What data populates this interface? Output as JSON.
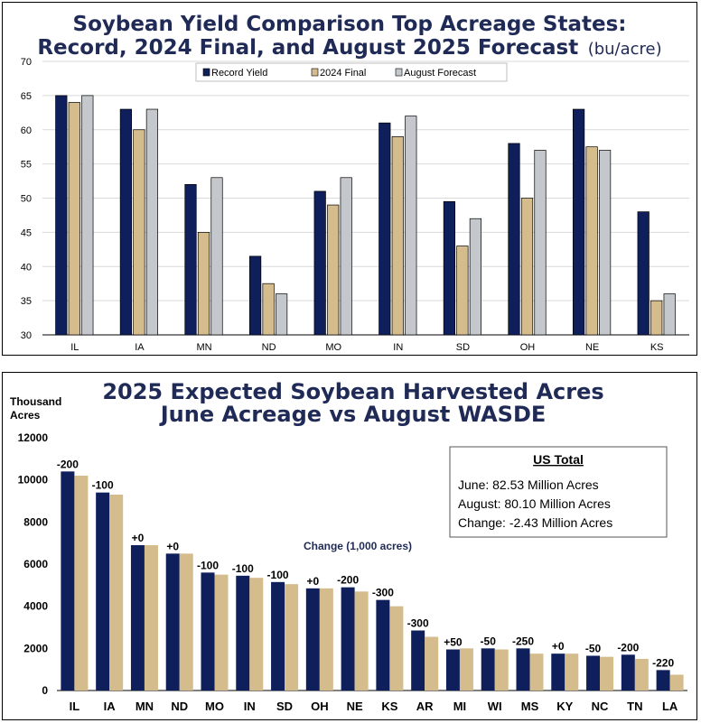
{
  "chart_data": [
    {
      "type": "bar",
      "title": "Soybean Yield Comparison Top Acreage States:",
      "title_line2": "Record, 2024 Final, and August 2025 Forecast",
      "title_unit": "(bu/acre)",
      "categories": [
        "IL",
        "IA",
        "MN",
        "ND",
        "MO",
        "IN",
        "SD",
        "OH",
        "NE",
        "KS"
      ],
      "series": [
        {
          "name": "Record Yield",
          "color": "#0f1f5c",
          "values": [
            65,
            63,
            52,
            41.5,
            51,
            61,
            49.5,
            58,
            63,
            48
          ]
        },
        {
          "name": "2024 Final",
          "color": "#d4bc8c",
          "values": [
            64,
            60,
            45,
            37.5,
            49,
            59,
            43,
            50,
            57.5,
            35
          ]
        },
        {
          "name": "August Forecast",
          "color": "#c4c7cb",
          "values": [
            65,
            63,
            53,
            36,
            53,
            62,
            47,
            57,
            57,
            36
          ]
        }
      ],
      "ylim": [
        30,
        70
      ],
      "yticks": [
        "30",
        "35",
        "40",
        "45",
        "50",
        "55",
        "60",
        "65",
        "70"
      ],
      "grid": true,
      "legend_position": "top-center"
    },
    {
      "type": "bar",
      "title": "2025 Expected Soybean Harvested Acres",
      "title_line2": "June Acreage vs August WASDE",
      "ylabel_line1": "Thousand",
      "ylabel_line2": "Acres",
      "categories": [
        "IL",
        "IA",
        "MN",
        "ND",
        "MO",
        "IN",
        "SD",
        "OH",
        "NE",
        "KS",
        "AR",
        "MI",
        "WI",
        "MS",
        "KY",
        "NC",
        "TN",
        "LA"
      ],
      "series": [
        {
          "name": "June",
          "color": "#0f1f5c",
          "values": [
            10400,
            9400,
            6900,
            6500,
            5600,
            5450,
            5150,
            4850,
            4900,
            4300,
            2850,
            1950,
            2000,
            2000,
            1750,
            1650,
            1700,
            970
          ]
        },
        {
          "name": "August",
          "color": "#d4bc8c",
          "values": [
            10200,
            9300,
            6900,
            6500,
            5500,
            5350,
            5050,
            4850,
            4700,
            4000,
            2550,
            2000,
            1950,
            1750,
            1750,
            1600,
            1500,
            750
          ]
        }
      ],
      "change_labels": [
        "-200",
        "-100",
        "+0",
        "+0",
        "-100",
        "-100",
        "-100",
        "+0",
        "-200",
        "-300",
        "-300",
        "+50",
        "-50",
        "-250",
        "+0",
        "-50",
        "-200",
        "-220"
      ],
      "annotation": "Change (1,000 acres)",
      "ylim": [
        0,
        12000
      ],
      "yticks": [
        "0",
        "2000",
        "4000",
        "6000",
        "8000",
        "10000",
        "12000"
      ],
      "grid": false,
      "summary_box": {
        "title": "US Total",
        "lines": [
          "June: 82.53 Million Acres",
          "August: 80.10 Million Acres",
          "Change: -2.43 Million Acres"
        ]
      }
    }
  ]
}
